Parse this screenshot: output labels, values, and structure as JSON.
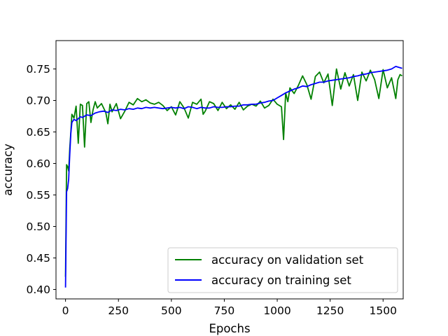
{
  "chart_data": {
    "type": "line",
    "xlabel": "Epochs",
    "ylabel": "accuracy",
    "xlim": [
      -45,
      1595
    ],
    "ylim": [
      0.385,
      0.795
    ],
    "xticks": [
      0,
      250,
      500,
      750,
      1000,
      1250,
      1500
    ],
    "yticks": [
      0.4,
      0.45,
      0.5,
      0.55,
      0.6,
      0.65,
      0.7,
      0.75
    ],
    "grid": false,
    "legend_position": "lower-right",
    "series": [
      {
        "name": "accuracy on validation set",
        "color": "#008000",
        "x": [
          0,
          5,
          10,
          15,
          20,
          25,
          30,
          40,
          50,
          60,
          70,
          80,
          90,
          100,
          110,
          120,
          130,
          140,
          150,
          170,
          190,
          200,
          210,
          220,
          240,
          260,
          280,
          300,
          320,
          340,
          360,
          380,
          400,
          420,
          440,
          460,
          480,
          500,
          520,
          540,
          560,
          580,
          600,
          620,
          640,
          650,
          660,
          680,
          700,
          720,
          740,
          760,
          780,
          800,
          820,
          840,
          860,
          880,
          900,
          920,
          940,
          960,
          980,
          1000,
          1020,
          1030,
          1040,
          1050,
          1060,
          1080,
          1100,
          1120,
          1140,
          1160,
          1180,
          1200,
          1220,
          1240,
          1260,
          1280,
          1300,
          1320,
          1340,
          1360,
          1380,
          1400,
          1420,
          1440,
          1460,
          1480,
          1500,
          1520,
          1540,
          1560,
          1570,
          1580,
          1590
        ],
        "values": [
          0.42,
          0.598,
          0.595,
          0.588,
          0.625,
          0.65,
          0.678,
          0.672,
          0.691,
          0.632,
          0.694,
          0.692,
          0.626,
          0.695,
          0.698,
          0.665,
          0.685,
          0.698,
          0.688,
          0.695,
          0.681,
          0.663,
          0.694,
          0.682,
          0.695,
          0.671,
          0.683,
          0.697,
          0.693,
          0.703,
          0.698,
          0.701,
          0.696,
          0.694,
          0.697,
          0.692,
          0.684,
          0.69,
          0.677,
          0.698,
          0.688,
          0.672,
          0.697,
          0.694,
          0.702,
          0.678,
          0.683,
          0.698,
          0.695,
          0.684,
          0.697,
          0.687,
          0.693,
          0.686,
          0.697,
          0.685,
          0.691,
          0.694,
          0.691,
          0.699,
          0.688,
          0.692,
          0.702,
          0.694,
          0.69,
          0.638,
          0.712,
          0.698,
          0.72,
          0.711,
          0.724,
          0.739,
          0.725,
          0.702,
          0.738,
          0.745,
          0.728,
          0.742,
          0.692,
          0.75,
          0.718,
          0.744,
          0.723,
          0.741,
          0.7,
          0.745,
          0.731,
          0.748,
          0.733,
          0.703,
          0.749,
          0.72,
          0.736,
          0.703,
          0.733,
          0.741,
          0.739
        ]
      },
      {
        "name": "accuracy on training set",
        "color": "#0000ff",
        "x": [
          0,
          5,
          10,
          15,
          20,
          25,
          30,
          40,
          50,
          60,
          70,
          80,
          100,
          120,
          140,
          160,
          180,
          200,
          220,
          240,
          260,
          280,
          300,
          320,
          340,
          360,
          380,
          400,
          420,
          440,
          460,
          480,
          500,
          520,
          540,
          560,
          580,
          600,
          620,
          640,
          660,
          680,
          700,
          720,
          740,
          760,
          780,
          800,
          820,
          840,
          860,
          880,
          900,
          920,
          940,
          960,
          980,
          1000,
          1020,
          1040,
          1060,
          1080,
          1100,
          1120,
          1140,
          1160,
          1180,
          1200,
          1220,
          1240,
          1260,
          1280,
          1300,
          1320,
          1340,
          1360,
          1380,
          1400,
          1420,
          1440,
          1460,
          1480,
          1500,
          1520,
          1540,
          1560,
          1580,
          1590
        ],
        "values": [
          0.403,
          0.555,
          0.56,
          0.575,
          0.615,
          0.648,
          0.665,
          0.67,
          0.668,
          0.671,
          0.674,
          0.673,
          0.677,
          0.676,
          0.68,
          0.682,
          0.683,
          0.681,
          0.685,
          0.684,
          0.686,
          0.685,
          0.687,
          0.686,
          0.688,
          0.687,
          0.689,
          0.688,
          0.689,
          0.688,
          0.687,
          0.688,
          0.689,
          0.688,
          0.689,
          0.687,
          0.69,
          0.689,
          0.687,
          0.689,
          0.688,
          0.688,
          0.69,
          0.689,
          0.689,
          0.69,
          0.69,
          0.691,
          0.691,
          0.693,
          0.693,
          0.694,
          0.694,
          0.696,
          0.697,
          0.699,
          0.7,
          0.704,
          0.708,
          0.712,
          0.715,
          0.718,
          0.72,
          0.723,
          0.722,
          0.725,
          0.727,
          0.729,
          0.729,
          0.731,
          0.732,
          0.733,
          0.734,
          0.735,
          0.736,
          0.738,
          0.739,
          0.741,
          0.742,
          0.744,
          0.745,
          0.746,
          0.747,
          0.748,
          0.75,
          0.754,
          0.752,
          0.751
        ]
      }
    ]
  }
}
